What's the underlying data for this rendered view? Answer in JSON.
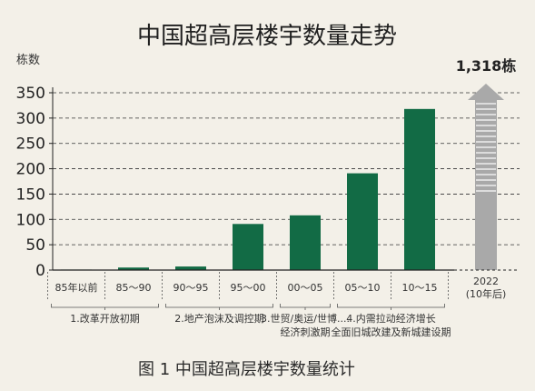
{
  "chart_data": {
    "type": "bar",
    "title": "中国超高层楼宇数量走势",
    "caption": "图 1  中国超高层楼宇数量统计",
    "ylabel": "栋数",
    "ylim": [
      0,
      350
    ],
    "yticks": [
      0,
      50,
      100,
      150,
      200,
      250,
      300,
      350
    ],
    "categories": [
      "85年以前",
      "85～90",
      "90～95",
      "95～00",
      "00～05",
      "05～10",
      "10～15"
    ],
    "values": [
      1,
      5,
      7,
      91,
      108,
      191,
      318
    ],
    "bar_color": "#126b45",
    "grid": "dashed horizontal",
    "projection": {
      "category_line1": "2022",
      "category_line2": "(10年后)",
      "total_label": "1,318栋",
      "value": 1318,
      "color": "#a9a9a9"
    },
    "periods": [
      {
        "line1": "1.改革开放初期",
        "line2": "",
        "from": 0,
        "to": 1
      },
      {
        "line1": "2.地产泡沫及调控期",
        "line2": "",
        "from": 2,
        "to": 3
      },
      {
        "line1": "3.世贸/奥运/世博....",
        "line2": "经济刺激期",
        "from": 4,
        "to": 4
      },
      {
        "line1": "4.内需拉动经济增长",
        "line2": "全面旧城改建及新城建设期",
        "from": 5,
        "to": 6
      }
    ]
  }
}
